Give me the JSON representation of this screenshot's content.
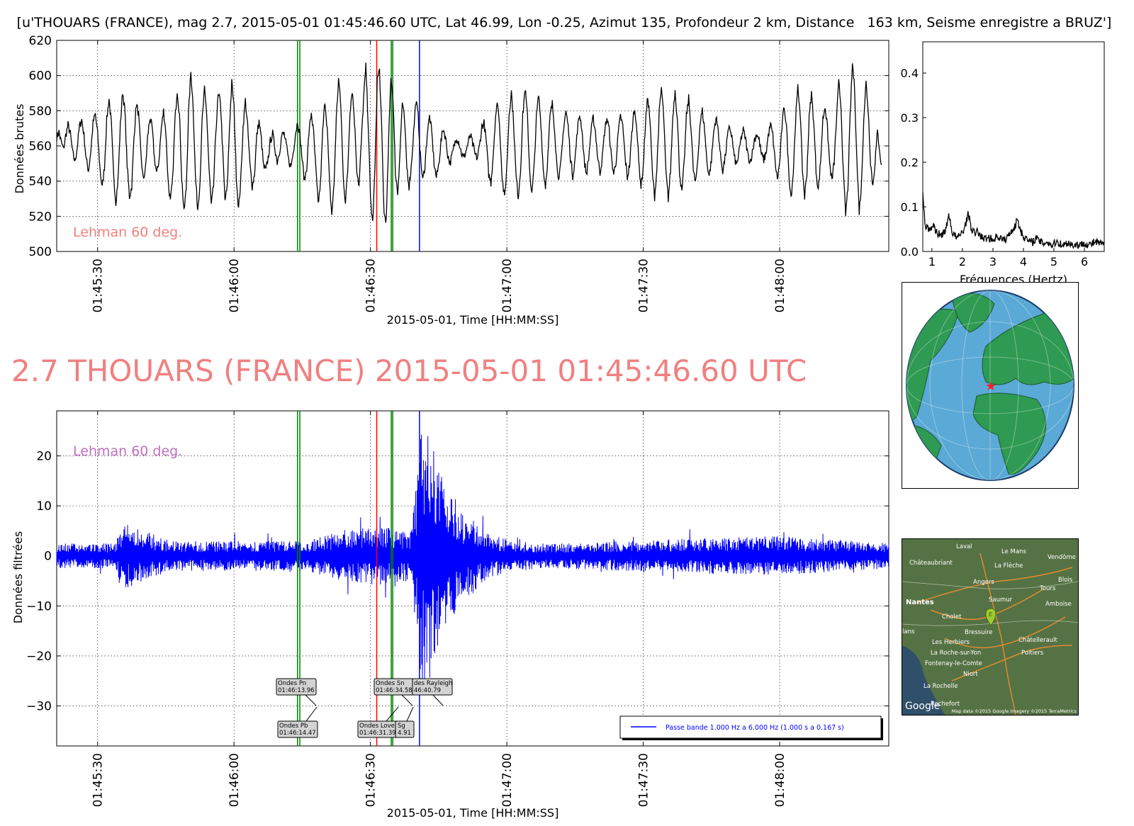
{
  "header": {
    "title": "[u'THOUARS (FRANCE), mag 2.7, 2015-05-01 01:45:46.60 UTC, Lat 46.99, Lon -0.25, Azimut 135, Profondeur 2 km, Distance   163 km, Seisme enregistre a BRUZ']",
    "big_title": "2.7 THOUARS (FRANCE) 2015-05-01 01:45:46.60 UTC"
  },
  "colors": {
    "raw_trace": "#000000",
    "filtered_trace": "#0000ff",
    "annotation_pink": "#f08080",
    "annotation_purple": "#c070c0",
    "green_line": "#008000",
    "red_line": "#ff0000",
    "blue_line": "#0000ff"
  },
  "chart_data": [
    {
      "type": "line",
      "panel": "raw",
      "ylabel": "Données brutes",
      "xlabel": "2015-05-01, Time [HH:MM:SS]",
      "ylim": [
        500,
        620
      ],
      "yticks": [
        "500",
        "520",
        "540",
        "560",
        "580",
        "600",
        "620"
      ],
      "xlim": [
        "01:45:21",
        "01:48:24"
      ],
      "xticks": [
        "01:45:30",
        "01:46:00",
        "01:46:30",
        "01:47:00",
        "01:47:30",
        "01:48:00"
      ],
      "annotation": "Lehman 60 deg.",
      "grid": true,
      "series": [
        {
          "color": "#000000",
          "sample_interval_s": 0.5,
          "t0": "01:45:21",
          "values": [
            565,
            568,
            562,
            558,
            566,
            572,
            567,
            556,
            551,
            559,
            571,
            575,
            566,
            552,
            546,
            557,
            573,
            578,
            567,
            548,
            536,
            548,
            575,
            587,
            573,
            544,
            528,
            541,
            572,
            591,
            580,
            549,
            531,
            537,
            565,
            584,
            578,
            556,
            541,
            546,
            565,
            576,
            570,
            553,
            544,
            552,
            570,
            580,
            568,
            540,
            528,
            541,
            574,
            592,
            578,
            542,
            522,
            536,
            578,
            602,
            583,
            543,
            524,
            539,
            575,
            592,
            578,
            547,
            526,
            537,
            568,
            588,
            586,
            557,
            529,
            536,
            571,
            596,
            582,
            543,
            524,
            541,
            571,
            586,
            571,
            549,
            537,
            544,
            566,
            574,
            564,
            548,
            546,
            553,
            563,
            567,
            559,
            551,
            557,
            566,
            567,
            560,
            552,
            548,
            556,
            567,
            574,
            566,
            552,
            540,
            548,
            568,
            579,
            567,
            546,
            527,
            538,
            568,
            586,
            570,
            539,
            521,
            538,
            576,
            598,
            582,
            543,
            528,
            546,
            580,
            592,
            574,
            547,
            537,
            562,
            587,
            605,
            574,
            530,
            516,
            548,
            598,
            603,
            567,
            521,
            518,
            562,
            600,
            586,
            545,
            533,
            557,
            585,
            574,
            548,
            537,
            549,
            568,
            586,
            577,
            554,
            540,
            549,
            567,
            577,
            567,
            550,
            542,
            549,
            562,
            570,
            565,
            555,
            550,
            555,
            561,
            565,
            562,
            556,
            553,
            557,
            562,
            566,
            561,
            555,
            553,
            560,
            571,
            573,
            562,
            544,
            539,
            555,
            577,
            585,
            567,
            541,
            530,
            548,
            578,
            591,
            573,
            544,
            531,
            546,
            577,
            593,
            578,
            547,
            532,
            548,
            576,
            589,
            573,
            547,
            537,
            553,
            577,
            584,
            570,
            549,
            541,
            553,
            571,
            580,
            571,
            553,
            543,
            552,
            569,
            578,
            570,
            552,
            544,
            553,
            568,
            576,
            568,
            553,
            545,
            553,
            568,
            576,
            569,
            553,
            544,
            551,
            567,
            577,
            571,
            554,
            542,
            549,
            567,
            581,
            574,
            551,
            537,
            548,
            574,
            588,
            574,
            545,
            531,
            547,
            578,
            593,
            577,
            544,
            530,
            546,
            577,
            592,
            575,
            545,
            533,
            550,
            577,
            587,
            571,
            547,
            538,
            553,
            573,
            580,
            569,
            551,
            543,
            552,
            568,
            576,
            569,
            554,
            546,
            553,
            565,
            571,
            565,
            554,
            549,
            555,
            564,
            569,
            564,
            555,
            551,
            556,
            564,
            567,
            563,
            555,
            552,
            556,
            566,
            572,
            566,
            551,
            541,
            550,
            570,
            583,
            571,
            545,
            531,
            545,
            575,
            593,
            580,
            547,
            531,
            545,
            576,
            590,
            574,
            546,
            535,
            551,
            575,
            583,
            570,
            550,
            540,
            551,
            575,
            596,
            583,
            545,
            521,
            536,
            577,
            607,
            592,
            550,
            523,
            538,
            576,
            596,
            580,
            551,
            537,
            552,
            568,
            558,
            544
          ]
        }
      ]
    },
    {
      "type": "line",
      "panel": "spectrum",
      "xlabel": "Fréquences (Hertz)",
      "ylim": [
        0.0,
        0.47
      ],
      "yticks": [
        "0.0",
        "0.1",
        "0.2",
        "0.3",
        "0.4"
      ],
      "xlim": [
        0.7,
        6.65
      ],
      "xticks": [
        "1",
        "2",
        "3",
        "4",
        "5",
        "6"
      ],
      "series": [
        {
          "color": "#000000",
          "freq_step_hz": 0.05,
          "f0": 0.7,
          "values": [
            0.14,
            0.08,
            0.05,
            0.06,
            0.045,
            0.05,
            0.055,
            0.06,
            0.05,
            0.045,
            0.04,
            0.038,
            0.035,
            0.04,
            0.045,
            0.05,
            0.06,
            0.085,
            0.07,
            0.045,
            0.04,
            0.035,
            0.032,
            0.03,
            0.035,
            0.04,
            0.045,
            0.05,
            0.06,
            0.075,
            0.085,
            0.065,
            0.05,
            0.045,
            0.04,
            0.042,
            0.045,
            0.04,
            0.035,
            0.03,
            0.03,
            0.028,
            0.03,
            0.032,
            0.03,
            0.028,
            0.025,
            0.03,
            0.032,
            0.035,
            0.032,
            0.03,
            0.028,
            0.025,
            0.026,
            0.03,
            0.035,
            0.04,
            0.045,
            0.05,
            0.055,
            0.06,
            0.075,
            0.06,
            0.05,
            0.04,
            0.035,
            0.03,
            0.028,
            0.025,
            0.022,
            0.02,
            0.022,
            0.025,
            0.03,
            0.028,
            0.025,
            0.022,
            0.02,
            0.018,
            0.02,
            0.022,
            0.02,
            0.018,
            0.015,
            0.015,
            0.018,
            0.02,
            0.022,
            0.02,
            0.018,
            0.016,
            0.015,
            0.015,
            0.017,
            0.02,
            0.02,
            0.017,
            0.015,
            0.014,
            0.015,
            0.016,
            0.015,
            0.014,
            0.015,
            0.018,
            0.02,
            0.018,
            0.016,
            0.015,
            0.015,
            0.017,
            0.02,
            0.022,
            0.02,
            0.018,
            0.02,
            0.018,
            0.015,
            0.013
          ]
        }
      ]
    },
    {
      "type": "line",
      "panel": "filtered",
      "ylabel": "Données filtrées",
      "xlabel": "2015-05-01, Time [HH:MM:SS]",
      "ylim": [
        -38,
        29
      ],
      "yticks": [
        "20",
        "10",
        "0",
        "−10",
        "−20",
        "−30"
      ],
      "ytick_values": [
        20,
        10,
        0,
        -10,
        -20,
        -30
      ],
      "xlim": [
        "01:45:21",
        "01:48:24"
      ],
      "xticks": [
        "01:45:30",
        "01:46:00",
        "01:46:30",
        "01:47:00",
        "01:47:30",
        "01:48:00"
      ],
      "annotation": "Lehman 60 deg.",
      "legend": {
        "label": "Passe bande 1.000 Hz a 6.000 Hz (1.000 s a 0.167 s)",
        "placement": "lower-right"
      },
      "grid": true,
      "series": [
        {
          "name": "Passe bande 1.000 Hz a 6.000 Hz (1.000 s a 0.167 s)",
          "color": "#0000ff",
          "envelope": {
            "time_s": [
              0,
              13,
              14,
              25,
              55,
              62,
              70,
              78,
              80,
              81,
              84,
              88,
              94,
              100,
              110,
              140,
              160,
              183
            ],
            "amplitude": [
              2.5,
              2.5,
              7,
              3,
              3,
              5,
              6,
              5,
              25,
              28,
              18,
              11,
              5,
              3,
              2.5,
              3.5,
              4,
              2.5
            ]
          }
        }
      ]
    }
  ],
  "phase_lines": [
    {
      "label": "Ondes Pn",
      "time": "01:46:13.96",
      "time_s": 52.96,
      "color": "#008000"
    },
    {
      "label": "Ondes Pb",
      "time": "01:46:14.47",
      "time_s": 53.47,
      "color": "#008000"
    },
    {
      "label": "Ondes Love",
      "time": "01:46:31.39",
      "time_s": 70.39,
      "color": "#ff0000"
    },
    {
      "label": "Ondes Sn",
      "time": "01:46:34.58",
      "time_s": 73.58,
      "color": "#008000"
    },
    {
      "label": "Ondes Sg",
      "time": "01:46:34.91",
      "time_s": 73.91,
      "color": "#008000"
    },
    {
      "label": "Ondes Rayleigh",
      "time": "01:46:40.79",
      "time_s": 79.79,
      "color": "#0000ff"
    }
  ],
  "phase_box_text": {
    "pn": [
      "Ondes Pn",
      "01:46:13.96"
    ],
    "pb": [
      "Ondes Pb",
      "01:46:14.47"
    ],
    "sn": [
      "Ondes Sn",
      "01:46:34.58"
    ],
    "love": [
      "Ondes Love",
      "01:46:31.39"
    ],
    "sg": [
      "Sg",
      "4.91"
    ],
    "rayleigh": [
      "des Rayleigh",
      "46:40.79"
    ]
  },
  "map_labels": {
    "cities": [
      "Laval",
      "Le Mans",
      "Vendôme",
      "Châteaubriant",
      "La Flèche",
      "Angers",
      "Blois",
      "Tours",
      "Amboise",
      "Nantes",
      "Saumur",
      "Cholet",
      "Bressuire",
      "Châtellerault",
      "Les Herbiers",
      "La Roche-sur-Yon",
      "Poitiers",
      "Fontenay-le-Comte",
      "Niort",
      "La Rochelle",
      "Rochefort",
      "lans"
    ],
    "marker": "E",
    "logo": "Google",
    "attribution": "Map data ©2015 Google Imagery ©2015 TerraMetrics"
  }
}
